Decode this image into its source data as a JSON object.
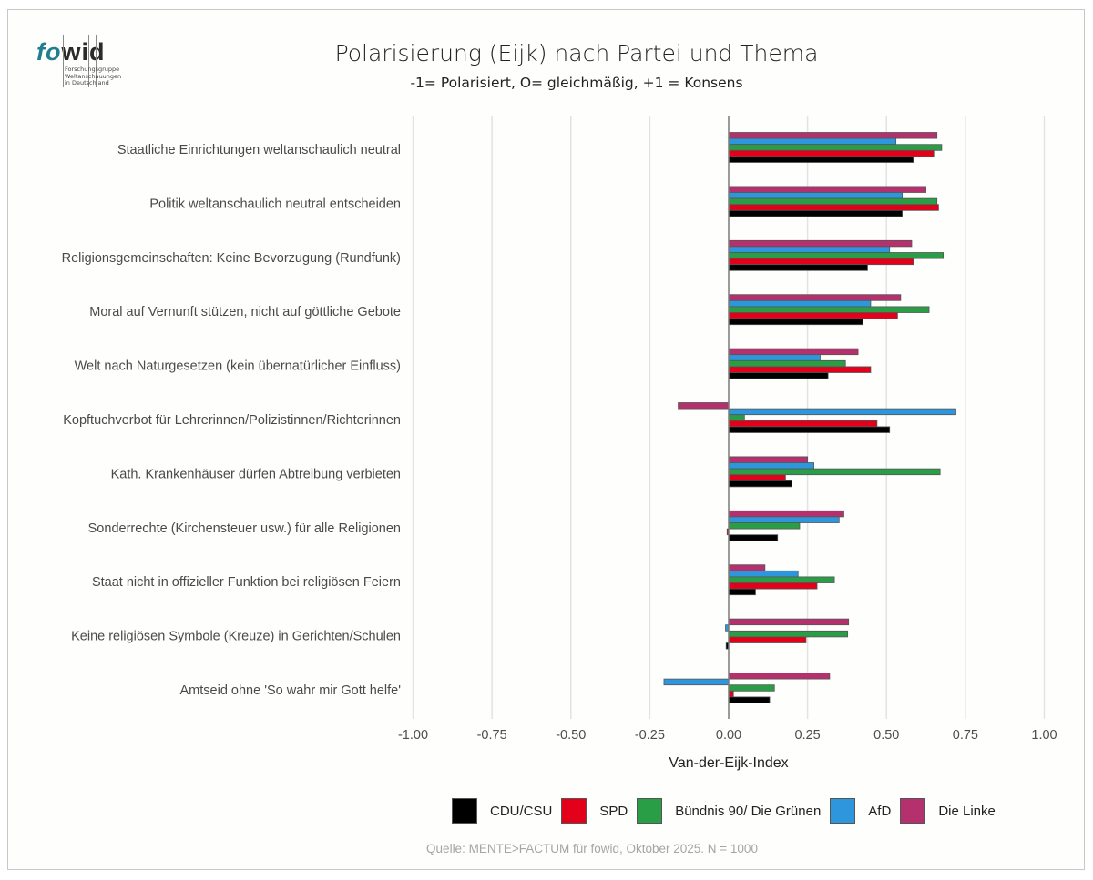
{
  "logo": {
    "word_part1": "fo",
    "word_part2": "w",
    "word_part3": "i",
    "word_part4": "d",
    "subtitle_lines": [
      "Forschungsgruppe",
      "Weltanschauungen",
      "in Deutschland"
    ]
  },
  "header": {
    "title": "Polarisierung (Eijk) nach Partei und Thema",
    "subtitle": "-1= Polarisiert, O= gleichmäßig, +1 = Konsens"
  },
  "source_note": "Quelle: MENTE>FACTUM für fowid, Oktober 2025. N = 1000",
  "chart_data": {
    "type": "bar",
    "orientation": "horizontal",
    "title": "Polarisierung (Eijk) nach Partei und Thema",
    "subtitle": "-1= Polarisiert, O= gleichmäßig, +1 = Konsens",
    "xlabel": "Van-der-Eijk-Index",
    "ylabel": "",
    "xlim": [
      -1.0,
      1.0
    ],
    "xticks": [
      -1.0,
      -0.75,
      -0.5,
      -0.25,
      0.0,
      0.25,
      0.5,
      0.75,
      1.0
    ],
    "xtick_labels": [
      "-1.00",
      "-0.75",
      "-0.50",
      "-0.25",
      "0.00",
      "0.25",
      "0.50",
      "0.75",
      "1.00"
    ],
    "grid": "vertical",
    "legend_position": "bottom",
    "categories": [
      "Staatliche Einrichtungen weltanschaulich neutral",
      "Politik weltanschaulich neutral entscheiden",
      "Religionsgemeinschaften: Keine Bevorzugung (Rundfunk)",
      "Moral auf Vernunft stützen, nicht auf göttliche Gebote",
      "Welt nach Naturgesetzen (kein übernatürlicher Einfluss)",
      "Kopftuchverbot für Lehrerinnen/Polizistinnen/Richterinnen",
      "Kath. Krankenhäuser dürfen Abtreibung verbieten",
      "Sonderrechte (Kirchensteuer usw.) für alle Religionen",
      "Staat nicht in offizieller Funktion bei religiösen Feiern",
      "Keine religiösen Symbole (Kreuze) in Gerichten/Schulen",
      "Amtseid ohne 'So wahr mir Gott helfe'"
    ],
    "series": [
      {
        "name": "CDU/CSU",
        "color": "#000000",
        "values": [
          0.585,
          0.55,
          0.44,
          0.425,
          0.315,
          0.51,
          0.2,
          0.155,
          0.085,
          -0.008,
          0.13
        ]
      },
      {
        "name": "SPD",
        "color": "#e3001b",
        "values": [
          0.65,
          0.665,
          0.585,
          0.535,
          0.45,
          0.47,
          0.18,
          -0.005,
          0.28,
          0.245,
          0.015
        ]
      },
      {
        "name": "Bündnis 90/ Die Grünen",
        "color": "#2a9d47",
        "values": [
          0.675,
          0.66,
          0.68,
          0.635,
          0.37,
          0.05,
          0.67,
          0.225,
          0.335,
          0.377,
          0.145
        ]
      },
      {
        "name": "AfD",
        "color": "#2e96dc",
        "values": [
          0.53,
          0.55,
          0.51,
          0.45,
          0.29,
          0.72,
          0.27,
          0.35,
          0.22,
          -0.01,
          -0.205
        ]
      },
      {
        "name": "Die Linke",
        "color": "#b5316d",
        "values": [
          0.66,
          0.625,
          0.58,
          0.545,
          0.41,
          -0.16,
          0.25,
          0.365,
          0.115,
          0.38,
          0.32
        ]
      }
    ]
  }
}
